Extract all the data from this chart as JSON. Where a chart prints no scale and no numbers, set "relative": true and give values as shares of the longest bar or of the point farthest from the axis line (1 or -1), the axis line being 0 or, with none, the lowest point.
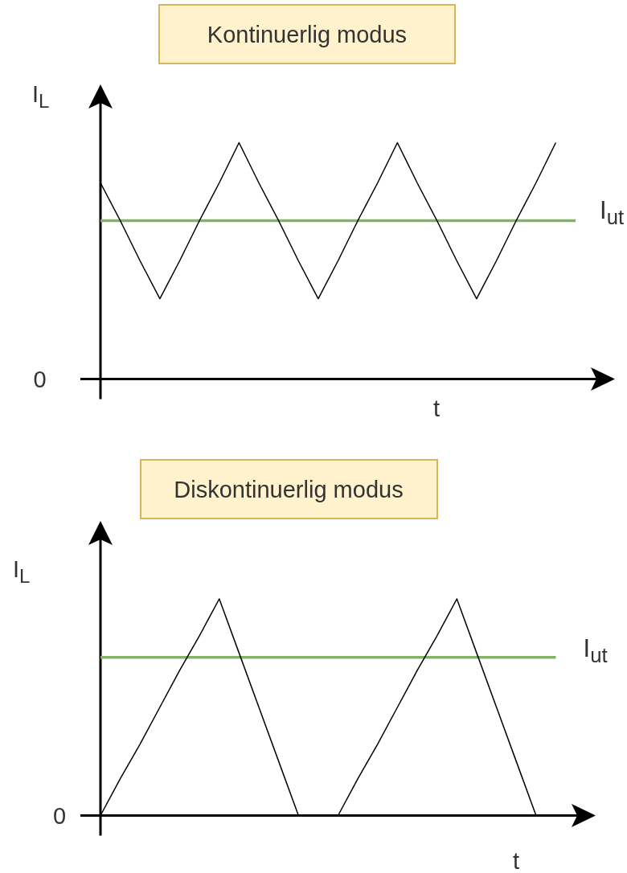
{
  "chart_data": [
    {
      "type": "line",
      "title": "Kontinuerlig modus",
      "xlabel": "t",
      "ylabel": "I$_{L}$",
      "relative": true,
      "categories": [
        null,
        null,
        null,
        null,
        null,
        null,
        null,
        null,
        null,
        null,
        null,
        null,
        null,
        null,
        null,
        null,
        null,
        null,
        null,
        null,
        null,
        null,
        null,
        null,
        null
      ],
      "series": [
        {
          "color": "#000000",
          "values": [
            0.83,
            0.67,
            0.5,
            0.34,
            0.5,
            0.67,
            0.83,
            1,
            0.83,
            0.67,
            0.5,
            0.34,
            0.5,
            0.67,
            0.83,
            1,
            0.83,
            0.67,
            0.5,
            0.34,
            0.5,
            0.67,
            0.83,
            1,
            null
          ]
        },
        {
          "name": "I$_{ut}$",
          "color": "#82b366",
          "values": [
            0.67,
            0.67,
            0.67,
            0.67,
            0.67,
            0.67,
            0.67,
            0.67,
            0.67,
            0.67,
            0.67,
            0.67,
            0.67,
            0.67,
            0.67,
            0.67,
            0.67,
            0.67,
            0.67,
            0.67,
            0.67,
            0.67,
            0.67,
            0.67,
            0.67
          ]
        }
      ],
      "annotations": [
        "0"
      ]
    },
    {
      "type": "line",
      "title": "Diskontinuerlig modus",
      "xlabel": "t",
      "ylabel": "I$_{L}$",
      "relative": true,
      "categories": [
        null,
        null,
        null,
        null,
        null,
        null,
        null,
        null,
        null,
        null,
        null,
        null,
        null,
        null,
        null,
        null,
        null,
        null,
        null,
        null,
        null,
        null,
        null,
        null
      ],
      "series": [
        {
          "color": "#000000",
          "values": [
            0,
            0.17,
            0.33,
            0.5,
            0.67,
            0.83,
            1,
            0.75,
            0.5,
            0.25,
            0,
            0,
            0,
            0.17,
            0.33,
            0.5,
            0.67,
            0.83,
            1,
            0.75,
            0.5,
            0.25,
            0,
            null
          ]
        },
        {
          "name": "I$_{ut}$",
          "color": "#82b366",
          "values": [
            0.73,
            0.73,
            0.73,
            0.73,
            0.73,
            0.73,
            0.73,
            0.73,
            0.73,
            0.73,
            0.73,
            0.73,
            0.73,
            0.73,
            0.73,
            0.73,
            0.73,
            0.73,
            0.73,
            0.73,
            0.73,
            0.73,
            0.73,
            0.73
          ]
        }
      ],
      "annotations": [
        "0"
      ]
    }
  ]
}
